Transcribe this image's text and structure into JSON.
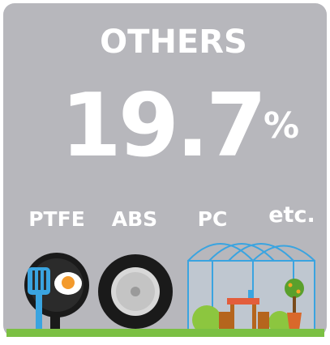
{
  "title": "OTHERS",
  "share": {
    "value": "19.7",
    "unit": "%"
  },
  "materials": [
    "PTFE",
    "ABS",
    "PC",
    "etc."
  ]
}
